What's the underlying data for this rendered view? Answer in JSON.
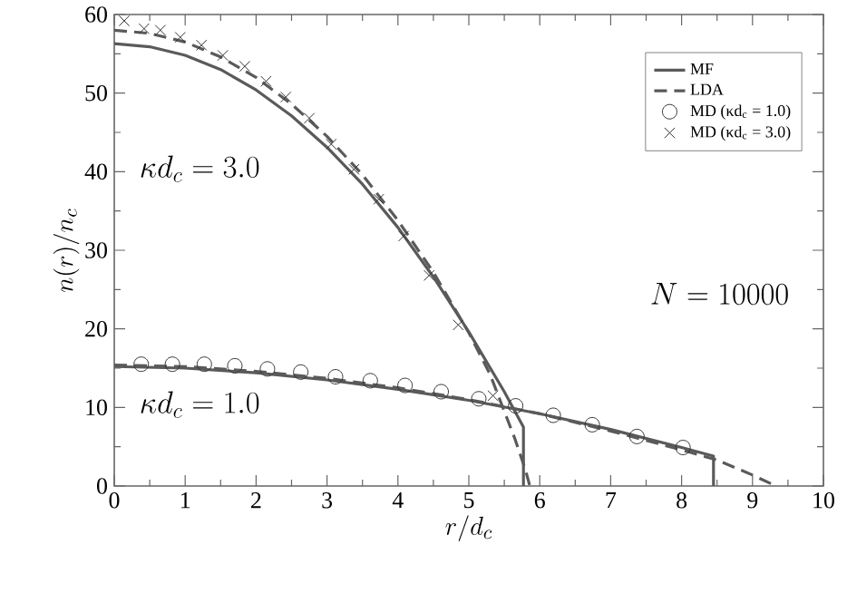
{
  "chart_data": {
    "type": "line",
    "xlabel": "r/d_c",
    "ylabel": "n(r)/n_c",
    "xlim": [
      0,
      10
    ],
    "ylim": [
      0,
      60
    ],
    "xticks": [
      0,
      1,
      2,
      3,
      4,
      5,
      6,
      7,
      8,
      9,
      10
    ],
    "yticks": [
      0,
      10,
      20,
      30,
      40,
      50,
      60
    ],
    "grid": false,
    "legend": "top right",
    "annotations": [
      "\\kappa d_c = 3.0",
      "\\kappa d_c = 1.0",
      "N = 10000"
    ],
    "series": [
      {
        "name": "MF",
        "line_style": "solid",
        "marker": "none",
        "color": "#5a5a5a",
        "x": [
          0,
          0.5,
          1,
          1.5,
          2,
          2.5,
          3,
          3.5,
          4,
          4.5,
          5,
          5.5,
          5.77,
          5.77
        ],
        "values": [
          56.3,
          55.9,
          54.8,
          53.0,
          50.4,
          47.1,
          43.1,
          38.4,
          32.9,
          26.6,
          19.6,
          12.0,
          7.5,
          0
        ]
      },
      {
        "name": "LDA",
        "line_style": "dashed",
        "marker": "none",
        "color": "#5a5a5a",
        "x": [
          0,
          0.5,
          1,
          1.5,
          2,
          2.5,
          3,
          3.5,
          4,
          4.5,
          5,
          5.3,
          5.5,
          5.65,
          5.8,
          5.86
        ],
        "values": [
          58.0,
          57.6,
          56.5,
          54.6,
          52.0,
          48.6,
          44.5,
          39.6,
          33.8,
          27.2,
          19.5,
          14.2,
          9.5,
          6.0,
          2.0,
          0
        ]
      },
      {
        "name": "MD (κd$_{c}$ = 1.0)",
        "type": "scatter",
        "marker": "circle",
        "color": "#333333",
        "x": [
          0.38,
          0.82,
          1.27,
          1.7,
          2.16,
          2.63,
          3.12,
          3.61,
          4.1,
          4.61,
          5.14,
          5.66,
          6.19,
          6.74,
          7.37,
          8.02
        ],
        "values": [
          15.5,
          15.5,
          15.5,
          15.3,
          14.9,
          14.5,
          13.9,
          13.4,
          12.8,
          12.0,
          11.1,
          10.2,
          9.0,
          7.8,
          6.3,
          4.9
        ]
      },
      {
        "name": "MD (κd$_{c}$ = 3.0)",
        "type": "scatter",
        "marker": "cross",
        "color": "#333333",
        "x": [
          0.14,
          0.42,
          0.65,
          0.93,
          1.23,
          1.53,
          1.84,
          2.14,
          2.42,
          2.75,
          3.06,
          3.38,
          3.73,
          4.08,
          4.44,
          4.85,
          5.34
        ],
        "values": [
          59.2,
          58.2,
          58.0,
          57.1,
          56.1,
          54.8,
          53.4,
          51.5,
          49.5,
          46.8,
          43.5,
          40.3,
          36.5,
          31.8,
          26.8,
          20.5,
          11.5
        ]
      },
      {
        "line_style": "solid",
        "marker": "none",
        "color": "#5a5a5a",
        "x": [
          0,
          1,
          2,
          3,
          4,
          5,
          6,
          7,
          8,
          8.45,
          8.45
        ],
        "values": [
          15.2,
          15.0,
          14.4,
          13.5,
          12.3,
          10.9,
          9.2,
          7.2,
          4.9,
          3.8,
          0
        ]
      },
      {
        "line_style": "dashed",
        "marker": "none",
        "color": "#5a5a5a",
        "x": [
          0,
          1,
          2,
          3,
          4,
          5,
          6,
          7,
          8,
          8.5,
          9,
          9.33
        ],
        "values": [
          15.4,
          15.2,
          14.6,
          13.7,
          12.5,
          11.0,
          9.2,
          7.0,
          4.6,
          3.3,
          1.4,
          0
        ]
      }
    ]
  }
}
